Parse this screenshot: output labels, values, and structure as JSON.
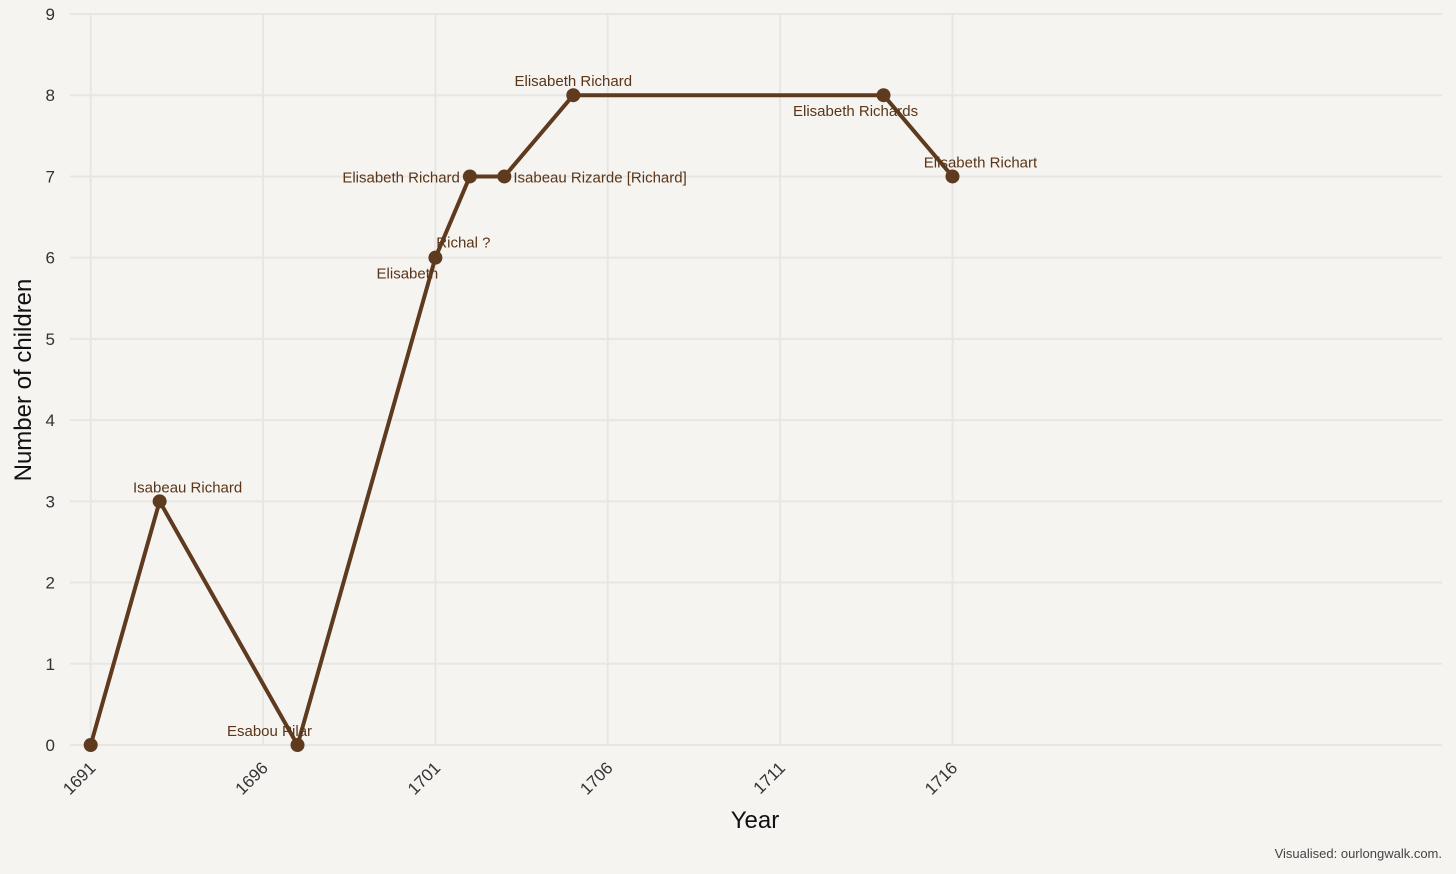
{
  "chart_data": {
    "type": "line",
    "xlabel": "Year",
    "ylabel": "Number of children",
    "xlim": [
      1690.4,
      1730.2
    ],
    "ylim": [
      0,
      9
    ],
    "x_ticks": [
      "1691",
      "1696",
      "1701",
      "1706",
      "1711",
      "1716"
    ],
    "y_ticks": [
      "0",
      "1",
      "2",
      "3",
      "4",
      "5",
      "6",
      "7",
      "8",
      "9"
    ],
    "grid": true,
    "series": [
      {
        "color": "#5e3a1e",
        "points": [
          {
            "x": 1691,
            "y": 0,
            "label": ""
          },
          {
            "x": 1693,
            "y": 3,
            "label": "Isabeau Richard"
          },
          {
            "x": 1697,
            "y": 0,
            "label": "Esabou Pilar"
          },
          {
            "x": 1701,
            "y": 6,
            "label": "Elisabeth Richal ?"
          },
          {
            "x": 1702,
            "y": 7,
            "label": "Elisabeth Richard"
          },
          {
            "x": 1703,
            "y": 7,
            "label": "Isabeau Rizarde [Richard]"
          },
          {
            "x": 1705,
            "y": 8,
            "label": "Elisabeth Richard"
          },
          {
            "x": 1714,
            "y": 8,
            "label": "Elisabeth Richards"
          },
          {
            "x": 1716,
            "y": 7,
            "label": "Elisabeth Richart"
          }
        ]
      }
    ],
    "caption": "Visualised: ourlongwalk.com."
  }
}
